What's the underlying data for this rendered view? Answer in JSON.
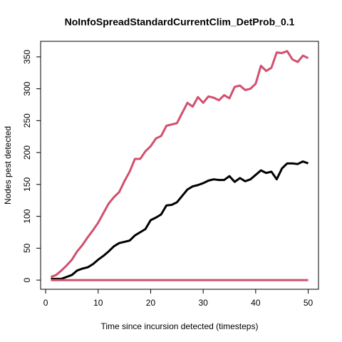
{
  "chart_data": {
    "type": "line",
    "title": "NoInfoSpreadStandardCurrentClim_DetProb_0.1",
    "x_label": "Time since incursion detected (timesteps)",
    "y_label": "Nodes pest detected",
    "x": [
      1,
      2,
      3,
      4,
      5,
      6,
      7,
      8,
      9,
      10,
      11,
      12,
      13,
      14,
      15,
      16,
      17,
      18,
      19,
      20,
      21,
      22,
      23,
      24,
      25,
      26,
      27,
      28,
      29,
      30,
      31,
      32,
      33,
      34,
      35,
      36,
      37,
      38,
      39,
      40,
      41,
      42,
      43,
      44,
      45,
      46,
      47,
      48,
      49,
      50
    ],
    "series": [
      {
        "color": "#000000",
        "values": [
          2,
          2,
          2,
          5,
          8,
          15,
          18,
          20,
          25,
          32,
          38,
          45,
          53,
          58,
          60,
          62,
          70,
          75,
          80,
          94,
          98,
          103,
          117,
          118,
          122,
          132,
          142,
          147,
          149,
          152,
          156,
          158,
          157,
          157,
          163,
          154,
          160,
          155,
          158,
          165,
          172,
          168,
          170,
          158,
          175,
          183,
          183,
          182,
          186,
          183
        ]
      },
      {
        "color": "#d1506e",
        "values": [
          5,
          8,
          15,
          23,
          32,
          45,
          55,
          67,
          78,
          90,
          105,
          120,
          130,
          138,
          155,
          170,
          190,
          190,
          202,
          210,
          222,
          226,
          242,
          244,
          246,
          262,
          278,
          272,
          287,
          278,
          288,
          286,
          282,
          290,
          285,
          303,
          305,
          298,
          300,
          308,
          336,
          328,
          333,
          357,
          356,
          359,
          346,
          342,
          352,
          348
        ]
      },
      {
        "color": "#d1506e",
        "values": [
          0,
          0,
          0,
          0,
          0,
          0,
          0,
          0,
          0,
          0,
          0,
          0,
          0,
          0,
          0,
          0,
          0,
          0,
          0,
          0,
          0,
          0,
          0,
          0,
          0,
          0,
          0,
          0,
          0,
          0,
          0,
          0,
          0,
          0,
          0,
          0,
          0,
          0,
          0,
          0,
          0,
          0,
          0,
          0,
          0,
          0,
          0,
          0,
          0,
          0
        ]
      }
    ],
    "xlim": [
      -0.96,
      51.96
    ],
    "ylim": [
      -14.4,
      374.4
    ],
    "xticks": [
      0,
      10,
      20,
      30,
      40,
      50
    ],
    "yticks": [
      0,
      50,
      100,
      150,
      200,
      250,
      300,
      350
    ]
  }
}
